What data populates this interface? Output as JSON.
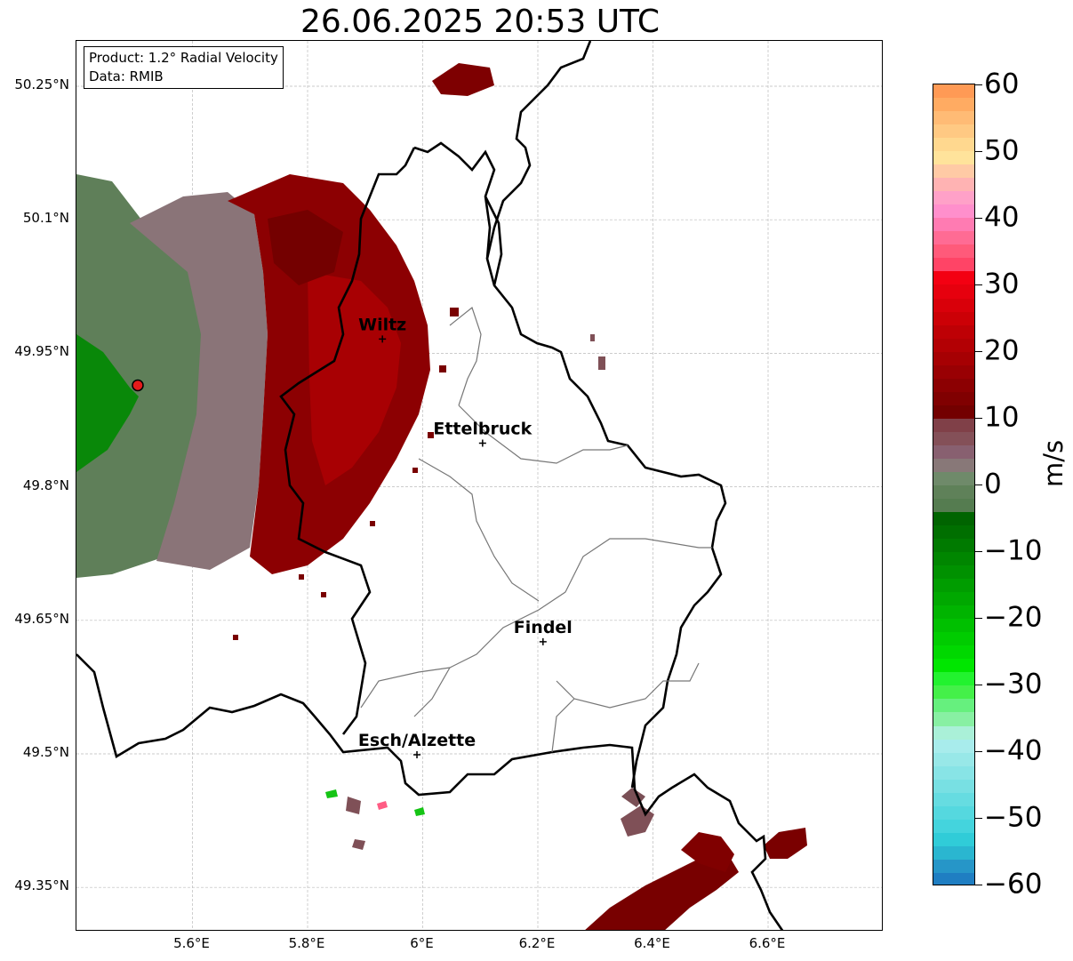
{
  "title": "26.06.2025 20:53 UTC",
  "info_box": {
    "product": "Product: 1.2° Radial Velocity",
    "source": "Data: RMIB"
  },
  "map": {
    "lon_range": [
      5.4,
      6.8
    ],
    "lat_range": [
      49.3,
      50.3
    ],
    "lat_ticks": [
      "50.25°N",
      "50.1°N",
      "49.95°N",
      "49.8°N",
      "49.65°N",
      "49.5°N",
      "49.35°N"
    ],
    "lon_ticks": [
      "5.6°E",
      "5.8°E",
      "6°E",
      "6.2°E",
      "6.4°E",
      "6.6°E"
    ],
    "grid": true,
    "radar_site": {
      "lon": 5.505,
      "lat": 49.914,
      "marker_color": "#e51b1b"
    },
    "cities": [
      {
        "name": "Wiltz",
        "lon": 5.93,
        "lat": 49.966
      },
      {
        "name": "Ettelbruck",
        "lon": 6.104,
        "lat": 49.849
      },
      {
        "name": "Findel",
        "lon": 6.209,
        "lat": 49.626
      },
      {
        "name": "Esch/Alzette",
        "lon": 5.99,
        "lat": 49.499
      }
    ]
  },
  "colorbar": {
    "unit": "m/s",
    "range": [
      -60,
      60
    ],
    "ticks": [
      "60",
      "50",
      "40",
      "30",
      "20",
      "10",
      "0",
      "−10",
      "−20",
      "−30",
      "−40",
      "−50",
      "−60"
    ],
    "colors_top_to_bottom": [
      "#ff9a55",
      "#ffab62",
      "#ffbb75",
      "#ffc983",
      "#ffd88f",
      "#ffe39b",
      "#ffcaa5",
      "#ffb3b3",
      "#ffa1c8",
      "#ff8fcc",
      "#ff7bb2",
      "#ff6b94",
      "#ff5a7a",
      "#ff4466",
      "#f30012",
      "#e6000e",
      "#d9000a",
      "#cc0006",
      "#be0005",
      "#b30004",
      "#a60003",
      "#990003",
      "#8c0002",
      "#800001",
      "#730000",
      "#804048",
      "#845058",
      "#886070",
      "#887878",
      "#6f8a6a",
      "#5f8159",
      "#557c50",
      "#006400",
      "#006f00",
      "#007a00",
      "#008600",
      "#009100",
      "#009d00",
      "#00a800",
      "#00b400",
      "#00c000",
      "#00cc00",
      "#00d800",
      "#00e600",
      "#22f22f",
      "#44f049",
      "#66f07e",
      "#88f0a3",
      "#aaf0d8",
      "#a8ecec",
      "#98e8e8",
      "#88e4e6",
      "#78e0e3",
      "#66dce1",
      "#55d8df",
      "#44d4dd",
      "#30ccd8",
      "#2ab6d0",
      "#2696c8",
      "#1f7ec2"
    ]
  }
}
